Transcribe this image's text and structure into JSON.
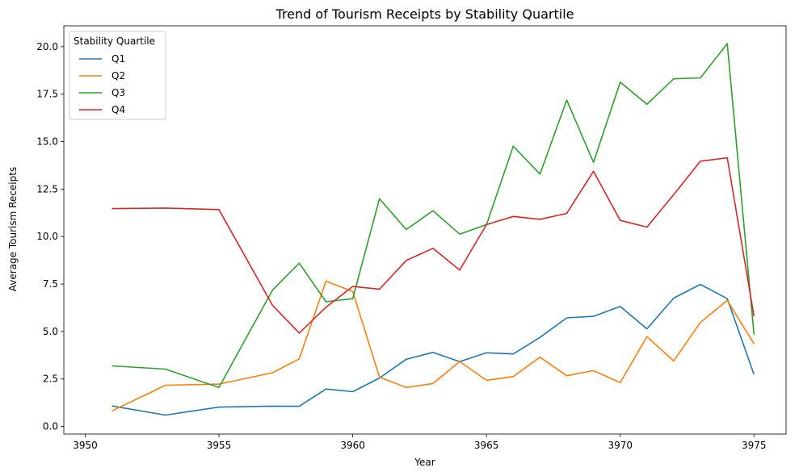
{
  "chart_data": {
    "type": "line",
    "title": "Trend of Tourism Receipts by Stability Quartile",
    "xlabel": "Year",
    "ylabel": "Average Tourism Receipts",
    "xlim": [
      3949.2,
      3976.2
    ],
    "ylim": [
      -0.4,
      21.1
    ],
    "xticks": [
      3950,
      3955,
      3960,
      3965,
      3970,
      3975
    ],
    "yticks": [
      0.0,
      2.5,
      5.0,
      7.5,
      10.0,
      12.5,
      15.0,
      17.5,
      20.0
    ],
    "ytick_labels": [
      "0.0",
      "2.5",
      "5.0",
      "7.5",
      "10.0",
      "12.5",
      "15.0",
      "17.5",
      "20.0"
    ],
    "grid": false,
    "legend": {
      "title": "Stability Quartile",
      "placement": "top-left"
    },
    "series": [
      {
        "name": "Q1",
        "color": "#1f77b4",
        "x": [
          3951,
          3953,
          3955,
          3957,
          3958,
          3959,
          3960,
          3961,
          3962,
          3963,
          3964,
          3965,
          3966,
          3967,
          3968,
          3969,
          3970,
          3971,
          3972,
          3973,
          3974,
          3975
        ],
        "values": [
          1.08,
          0.6,
          1.02,
          1.07,
          1.06,
          1.97,
          1.83,
          2.55,
          3.54,
          3.9,
          3.41,
          3.88,
          3.82,
          4.69,
          5.72,
          5.8,
          6.32,
          5.14,
          6.76,
          7.48,
          6.73,
          2.74
        ]
      },
      {
        "name": "Q2",
        "color": "#ff7f0e",
        "x": [
          3951,
          3953,
          3955,
          3957,
          3958,
          3959,
          3960,
          3961,
          3962,
          3963,
          3964,
          3965,
          3966,
          3967,
          3968,
          3969,
          3970,
          3971,
          3972,
          3973,
          3974,
          3975
        ],
        "values": [
          0.82,
          2.17,
          2.23,
          2.83,
          3.56,
          7.65,
          7.11,
          2.6,
          2.05,
          2.26,
          3.42,
          2.43,
          2.63,
          3.65,
          2.67,
          2.94,
          2.31,
          4.73,
          3.45,
          5.48,
          6.64,
          4.35
        ]
      },
      {
        "name": "Q3",
        "color": "#2ca02c",
        "x": [
          3951,
          3953,
          3955,
          3957,
          3958,
          3959,
          3960,
          3961,
          3962,
          3963,
          3964,
          3965,
          3966,
          3967,
          3968,
          3969,
          3970,
          3971,
          3972,
          3973,
          3974,
          3975
        ],
        "values": [
          3.19,
          3.02,
          2.05,
          7.18,
          8.6,
          6.57,
          6.73,
          11.99,
          10.37,
          11.36,
          10.13,
          10.63,
          14.76,
          13.29,
          17.19,
          13.91,
          18.13,
          16.97,
          18.31,
          18.36,
          20.16,
          4.84
        ]
      },
      {
        "name": "Q4",
        "color": "#d62728",
        "x": [
          3951,
          3953,
          3955,
          3957,
          3958,
          3959,
          3960,
          3961,
          3962,
          3963,
          3964,
          3965,
          3966,
          3967,
          3968,
          3969,
          3970,
          3971,
          3972,
          3973,
          3974,
          3975
        ],
        "values": [
          11.47,
          11.5,
          11.42,
          6.38,
          4.92,
          6.28,
          7.37,
          7.23,
          8.74,
          9.38,
          8.24,
          10.63,
          11.06,
          10.91,
          11.22,
          13.44,
          10.85,
          10.5,
          12.21,
          13.97,
          14.15,
          5.8
        ]
      }
    ]
  }
}
